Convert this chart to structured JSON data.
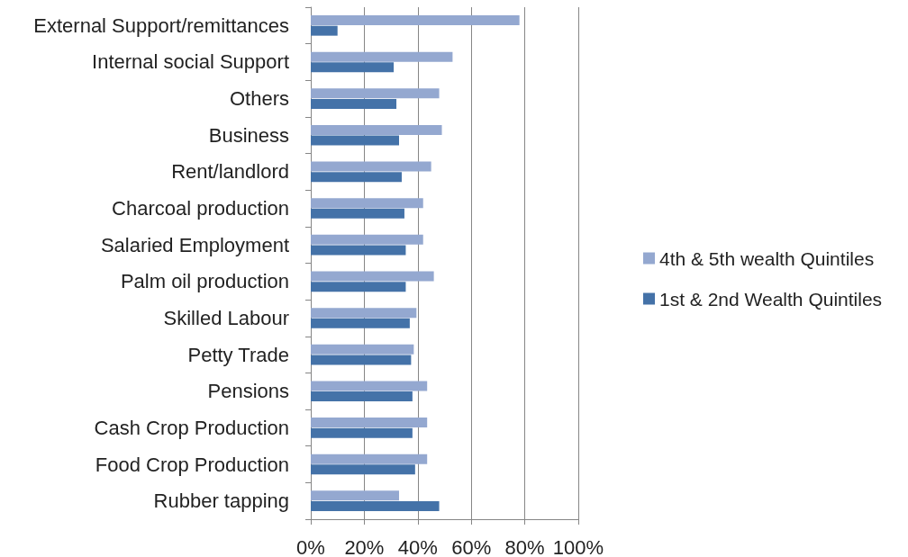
{
  "chart_data": {
    "type": "bar",
    "orientation": "horizontal",
    "categories": [
      "External Support/remittances",
      "Internal social Support",
      "Others",
      "Business",
      "Rent/landlord",
      "Charcoal production",
      "Salaried Employment",
      "Palm oil production",
      "Skilled Labour",
      "Petty Trade",
      "Pensions",
      "Cash Crop Production",
      "Food Crop Production",
      "Rubber tapping"
    ],
    "series": [
      {
        "name": "4th & 5th wealth Quintiles",
        "color": "#94a8d0",
        "values": [
          78,
          53,
          48,
          49,
          45,
          42,
          42,
          46,
          39.5,
          38.5,
          43.5,
          43.5,
          43.5,
          33
        ]
      },
      {
        "name": "1st & 2nd Wealth Quintiles",
        "color": "#4472a8",
        "values": [
          10,
          31,
          32,
          33,
          34,
          35,
          35.5,
          35.5,
          37,
          37.5,
          38,
          38,
          39,
          48
        ]
      }
    ],
    "xlim": [
      0,
      100
    ],
    "xticks": [
      {
        "value": 0,
        "label": "0%"
      },
      {
        "value": 20,
        "label": "20%"
      },
      {
        "value": 40,
        "label": "40%"
      },
      {
        "value": 60,
        "label": "60%"
      },
      {
        "value": 80,
        "label": "80%"
      },
      {
        "value": 100,
        "label": "100%"
      }
    ],
    "grid": "x",
    "legend": "right"
  }
}
